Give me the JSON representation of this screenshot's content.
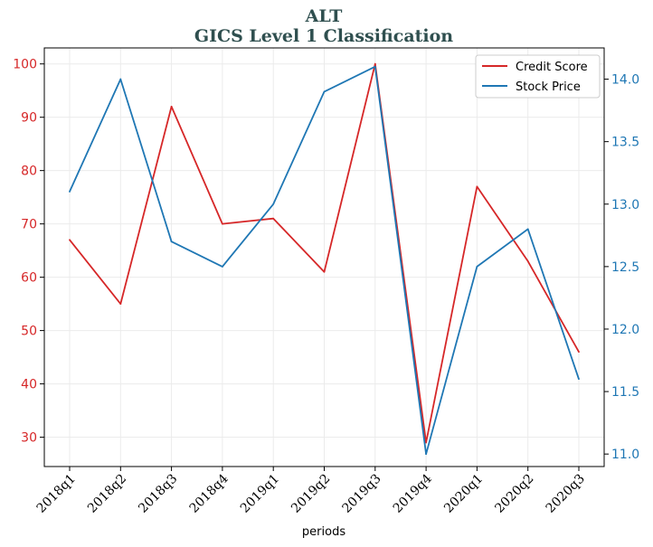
{
  "chart_data": {
    "type": "line",
    "title": "ALT",
    "subtitle": "GICS Level 1 Classification",
    "xlabel": "periods",
    "categories": [
      "2018q1",
      "2018q2",
      "2018q3",
      "2018q4",
      "2019q1",
      "2019q2",
      "2019q3",
      "2019q4",
      "2020q1",
      "2020q2",
      "2020q3"
    ],
    "series": [
      {
        "name": "Credit Score",
        "axis": "left",
        "color": "#d62728",
        "values": [
          67,
          55,
          92,
          70,
          71,
          61,
          100,
          29,
          77,
          63,
          46
        ]
      },
      {
        "name": "Stock Price",
        "axis": "right",
        "color": "#1f77b4",
        "values": [
          13.1,
          14.0,
          12.7,
          12.5,
          13.0,
          13.9,
          14.1,
          11.0,
          12.5,
          12.8,
          11.6
        ]
      }
    ],
    "left_axis": {
      "ylim": [
        24.5,
        103
      ],
      "ticks": [
        30,
        40,
        50,
        60,
        70,
        80,
        90,
        100
      ],
      "color": "#d62728"
    },
    "right_axis": {
      "ylim": [
        10.9,
        14.25
      ],
      "ticks": [
        "11.0",
        "11.5",
        "12.0",
        "12.5",
        "13.0",
        "13.5",
        "14.0"
      ],
      "color": "#1f77b4"
    },
    "grid": true,
    "legend_position": "top-right"
  }
}
